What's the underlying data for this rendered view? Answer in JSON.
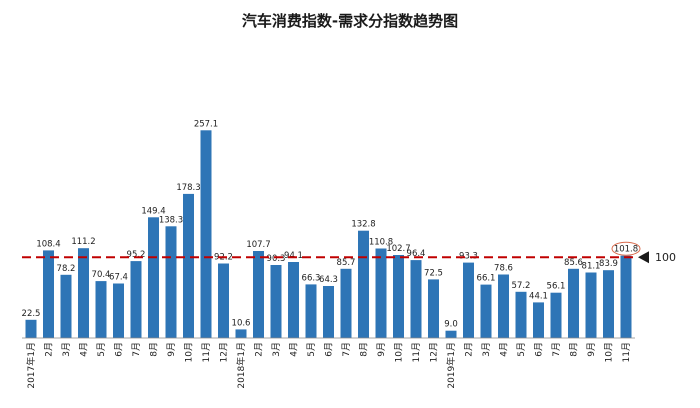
{
  "chart_data": {
    "type": "bar",
    "title": "汽车消费指数-需求分指数趋势图",
    "xlabel": "",
    "ylabel": "",
    "ylim": [
      0,
      290
    ],
    "categories": [
      "2017年1月",
      "2月",
      "3月",
      "4月",
      "5月",
      "6月",
      "7月",
      "8月",
      "9月",
      "10月",
      "11月",
      "12月",
      "2018年1月",
      "2月",
      "3月",
      "4月",
      "5月",
      "6月",
      "7月",
      "8月",
      "9月",
      "10月",
      "11月",
      "12月",
      "2019年1月",
      "2月",
      "3月",
      "4月",
      "5月",
      "6月",
      "7月",
      "8月",
      "9月",
      "10月",
      "11月"
    ],
    "values": [
      22.5,
      108.4,
      78.2,
      111.2,
      70.4,
      67.4,
      95.2,
      149.4,
      138.3,
      178.3,
      257.1,
      92.2,
      10.6,
      107.7,
      90.3,
      94.1,
      66.3,
      64.3,
      85.7,
      132.8,
      110.8,
      102.7,
      96.4,
      72.5,
      9.0,
      93.3,
      66.1,
      78.6,
      57.2,
      44.1,
      56.1,
      85.6,
      81.1,
      83.9,
      101.8
    ],
    "labels": [
      "22.5",
      "108.4",
      "78.2",
      "111.2",
      "70.4",
      "67.4",
      "95.2",
      "149.4",
      "138.3",
      "178.3",
      "257.1",
      "92.2",
      "10.6",
      "107.7",
      "90.3",
      "94.1",
      "66.3",
      "64.3",
      "85.7",
      "132.8",
      "110.8",
      "102.7",
      "96.4",
      "72.5",
      "9.0",
      "93.3",
      "66.1",
      "78.6",
      "57.2",
      "44.1",
      "56.1",
      "85.6",
      "81.1",
      "83.9",
      "101.8"
    ],
    "reference_line": {
      "value": 100,
      "label": "100",
      "color": "#c00000",
      "style": "dashed"
    },
    "highlighted_label_index": 34,
    "bar_color": "#2e75b6",
    "grid": false,
    "legend": "none"
  }
}
